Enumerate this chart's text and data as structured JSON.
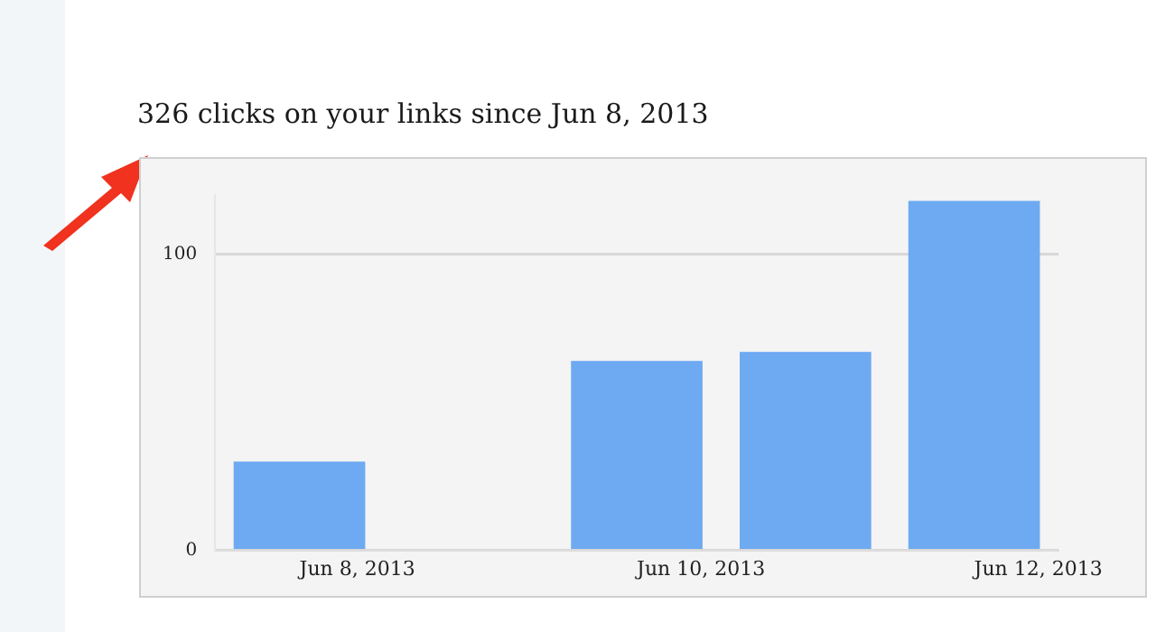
{
  "chart_data": {
    "type": "bar",
    "title": "326 clicks on your links since Jun 8, 2013",
    "categories": [
      "Jun 8, 2013",
      null,
      "Jun 10, 2013",
      null,
      "Jun 12, 2013"
    ],
    "values": [
      30,
      0,
      64,
      67,
      118
    ],
    "color": "#6eaaf2",
    "ylim": [
      0,
      120
    ],
    "yticks": [
      0,
      100
    ],
    "grid": "y"
  }
}
